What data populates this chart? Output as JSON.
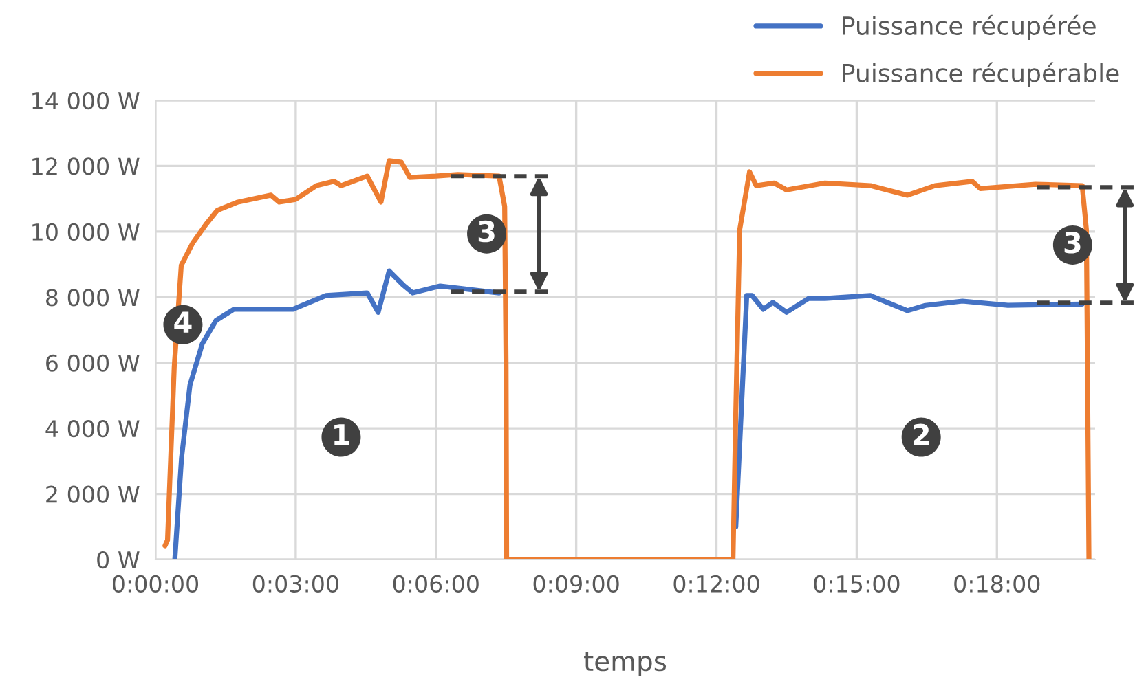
{
  "chart_data": {
    "type": "line",
    "xlabel": "temps",
    "xlim": [
      0,
      0.335
    ],
    "xticks": [
      {
        "value": 0,
        "label": "0:00:00"
      },
      {
        "value": 0.05,
        "label": "0:03:00"
      },
      {
        "value": 0.1,
        "label": "0:06:00"
      },
      {
        "value": 0.15,
        "label": "0:09:00"
      },
      {
        "value": 0.2,
        "label": "0:12:00"
      },
      {
        "value": 0.25,
        "label": "0:15:00"
      },
      {
        "value": 0.3,
        "label": "0:18:00"
      }
    ],
    "ylim": [
      0,
      14000
    ],
    "yticks": [
      {
        "value": 0,
        "label": "0 W"
      },
      {
        "value": 2000,
        "label": "2 000 W"
      },
      {
        "value": 4000,
        "label": "4 000 W"
      },
      {
        "value": 6000,
        "label": "6 000 W"
      },
      {
        "value": 8000,
        "label": "8 000 W"
      },
      {
        "value": 10000,
        "label": "10 000 W"
      },
      {
        "value": 12000,
        "label": "12 000 W"
      },
      {
        "value": 14000,
        "label": "14 000 W"
      }
    ],
    "grid": true,
    "legend": "top right",
    "marker": "none",
    "line_style": "solid",
    "series": [
      {
        "name": "Puissance récupérée",
        "color": "#4472c4",
        "x": [
          0.0069,
          0.0093,
          0.0123,
          0.0167,
          0.0216,
          0.0279,
          0.0426,
          0.049,
          0.0608,
          0.0755,
          0.0794,
          0.0833,
          0.0882,
          0.0917,
          0.1015,
          0.1225,
          0.15,
          0.2069,
          0.2108,
          0.2127,
          0.2167,
          0.2201,
          0.225,
          0.2328,
          0.2387,
          0.2549,
          0.2681,
          0.2745,
          0.2877,
          0.3039,
          0.3304
        ],
        "values": [
          0,
          3100,
          5320,
          6580,
          7290,
          7630,
          7630,
          7630,
          8050,
          8130,
          7540,
          8800,
          8380,
          8130,
          8340,
          8130,
          null,
          1000,
          8050,
          8050,
          7630,
          7840,
          7540,
          7960,
          7960,
          8050,
          7590,
          7750,
          7880,
          7750,
          7790
        ]
      },
      {
        "name": "Puissance récupérable",
        "color": "#ed7d31",
        "x": [
          0.0034,
          0.0043,
          0.0067,
          0.0092,
          0.0132,
          0.0181,
          0.0221,
          0.0294,
          0.0412,
          0.0441,
          0.05,
          0.0574,
          0.0637,
          0.0662,
          0.0755,
          0.0804,
          0.0833,
          0.0877,
          0.0907,
          0.1,
          0.1078,
          0.1225,
          0.1245,
          0.125,
          0.1252,
          0.2059,
          0.2069,
          0.2083,
          0.2118,
          0.2142,
          0.2206,
          0.225,
          0.2387,
          0.2549,
          0.2681,
          0.2779,
          0.2912,
          0.2941,
          0.3137,
          0.3304,
          0.3319,
          0.3328
        ],
        "values": [
          420,
          590,
          5880,
          8970,
          9640,
          10230,
          10650,
          10900,
          11110,
          10900,
          10980,
          11400,
          11530,
          11400,
          11690,
          10900,
          12160,
          12110,
          11650,
          11690,
          11740,
          11690,
          10770,
          5870,
          0,
          0,
          4480,
          10060,
          11820,
          11400,
          11480,
          11270,
          11480,
          11400,
          11110,
          11400,
          11530,
          11310,
          11440,
          11400,
          10060,
          0
        ]
      }
    ],
    "annotations": [
      {
        "text": "1",
        "x": 0.0662,
        "y": 3730
      },
      {
        "text": "2",
        "x": 0.273,
        "y": 3730
      },
      {
        "text": "3",
        "x": 0.1181,
        "y": 9930
      },
      {
        "text": "3",
        "x": 0.327,
        "y": 9590
      },
      {
        "text": "4",
        "x": 0.0098,
        "y": 7160
      }
    ]
  }
}
